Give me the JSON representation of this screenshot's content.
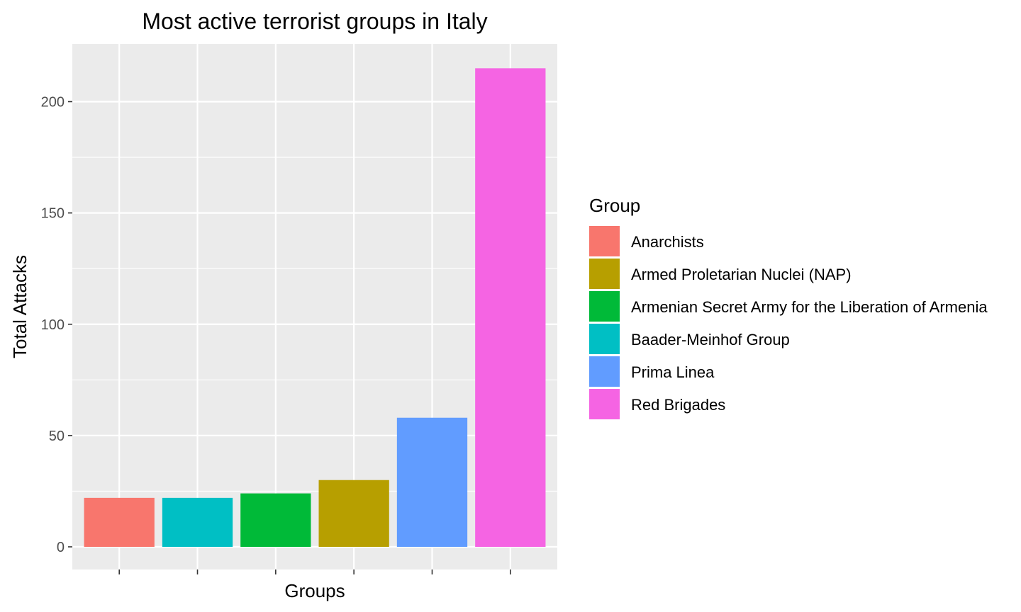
{
  "chart_data": {
    "type": "bar",
    "title": "Most active terrorist groups in Italy",
    "xlabel": "Groups",
    "ylabel": "Total Attacks",
    "ylim": [
      0,
      225
    ],
    "yticks": [
      0,
      50,
      100,
      150,
      200
    ],
    "grid": true,
    "legend_position": "right",
    "legend_title": "Group",
    "legend": [
      {
        "label": "Anarchists",
        "color": "#F8766D"
      },
      {
        "label": "Armed Proletarian Nuclei (NAP)",
        "color": "#B79F00"
      },
      {
        "label": "Armenian Secret Army for the Liberation of Armenia",
        "color": "#00BA38"
      },
      {
        "label": "Baader-Meinhof Group",
        "color": "#00BFC4"
      },
      {
        "label": "Prima Linea",
        "color": "#619CFF"
      },
      {
        "label": "Red Brigades",
        "color": "#F564E3"
      }
    ],
    "bars": [
      {
        "group": "Anarchists",
        "value": 22,
        "color": "#F8766D"
      },
      {
        "group": "Baader-Meinhof Group",
        "value": 22,
        "color": "#00BFC4"
      },
      {
        "group": "Armenian Secret Army for the Liberation of Armenia",
        "value": 24,
        "color": "#00BA38"
      },
      {
        "group": "Armed Proletarian Nuclei (NAP)",
        "value": 30,
        "color": "#B79F00"
      },
      {
        "group": "Prima Linea",
        "value": 58,
        "color": "#619CFF"
      },
      {
        "group": "Red Brigades",
        "value": 215,
        "color": "#F564E3"
      }
    ]
  }
}
